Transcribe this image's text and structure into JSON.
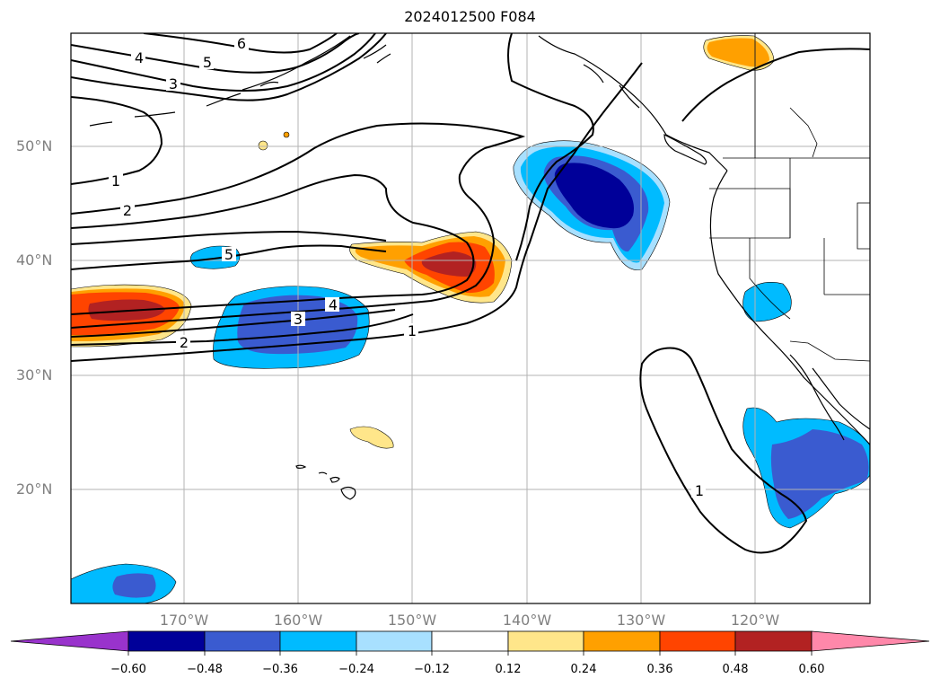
{
  "title": "2024012500 F084",
  "lat_labels": [
    "50°N",
    "40°N",
    "30°N",
    "20°N"
  ],
  "lon_labels": [
    "170°W",
    "160°W",
    "150°W",
    "140°W",
    "130°W",
    "120°W"
  ],
  "colorbar": {
    "ticks": [
      "−0.60",
      "−0.48",
      "−0.36",
      "−0.24",
      "−0.12",
      "0.12",
      "0.24",
      "0.36",
      "0.48",
      "0.60"
    ],
    "colors": [
      "#9933cc",
      "#000099",
      "#3a5bd0",
      "#00bbff",
      "#a8e0ff",
      "#ffffff",
      "#ffe68a",
      "#ffa000",
      "#ff4400",
      "#b22222",
      "#ff88aa"
    ]
  },
  "contour_labels": [
    "6",
    "4",
    "5",
    "3",
    "1",
    "2",
    "5",
    "4",
    "3",
    "2",
    "1",
    "1"
  ],
  "colors": {
    "grid": "#b3b3b3",
    "contour": "#000000",
    "axis_text": "#808080"
  }
}
